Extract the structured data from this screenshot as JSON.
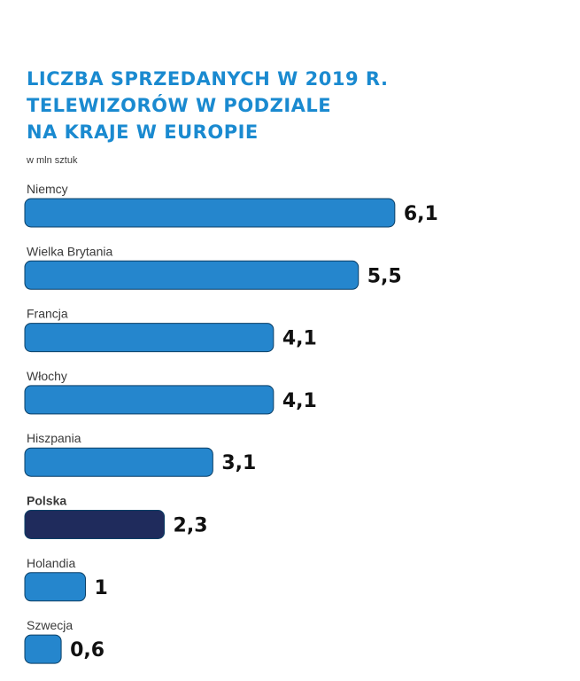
{
  "title_lines": [
    "LICZBA SPRZEDANYCH W 2019 R.",
    "TELEWIZORÓW W PODZIALE",
    "NA KRAJE W EUROPIE"
  ],
  "unit": "w mln sztuk",
  "colors": {
    "bar": "#2586cd",
    "highlight": "#1f2b5c",
    "title": "#1a8ad0",
    "value": "#111111",
    "label": "#3a3a3a"
  },
  "chart_data": {
    "type": "bar",
    "orientation": "horizontal",
    "title": "LICZBA SPRZEDANYCH W 2019 R. TELEWIZORÓW W PODZIALE NA KRAJE W EUROPIE",
    "unit": "w mln sztuk",
    "categories": [
      "Niemcy",
      "Wielka Brytania",
      "Francja",
      "Włochy",
      "Hiszpania",
      "Polska",
      "Holandia",
      "Szwecja"
    ],
    "values": [
      6.1,
      5.5,
      4.1,
      4.1,
      3.1,
      2.3,
      1,
      0.6
    ],
    "value_labels": [
      "6,1",
      "5,5",
      "4,1",
      "4,1",
      "3,1",
      "2,3",
      "1",
      "0,6"
    ],
    "highlight": "Polska"
  }
}
